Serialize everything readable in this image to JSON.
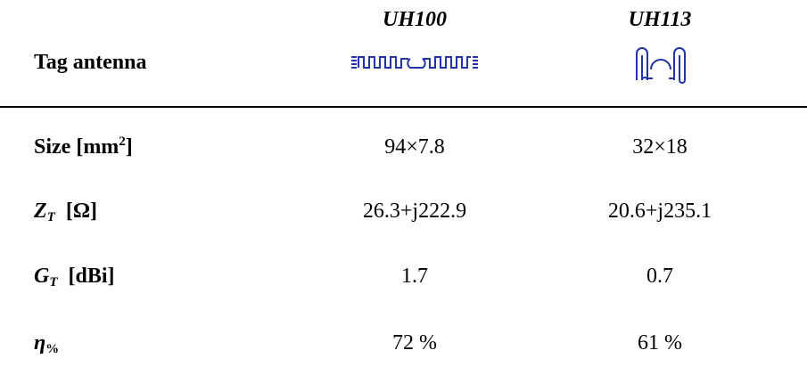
{
  "table": {
    "header": [
      "Tag antenna",
      "UH100",
      "UH113"
    ],
    "rows": [
      {
        "label": [
          "Size [mm",
          "2",
          "]"
        ],
        "values": [
          "94×7.8",
          "32×18"
        ]
      },
      {
        "label": [
          "Z",
          "T",
          "[Ω]"
        ],
        "values": [
          "26.3+j222.9",
          "20.6+j235.1"
        ]
      },
      {
        "label": [
          "G",
          "T",
          "[dBi]"
        ],
        "values": [
          "1.7",
          "0.7"
        ]
      },
      {
        "label": [
          "η",
          "%"
        ],
        "values": [
          "72 %",
          "61 %"
        ]
      }
    ]
  }
}
